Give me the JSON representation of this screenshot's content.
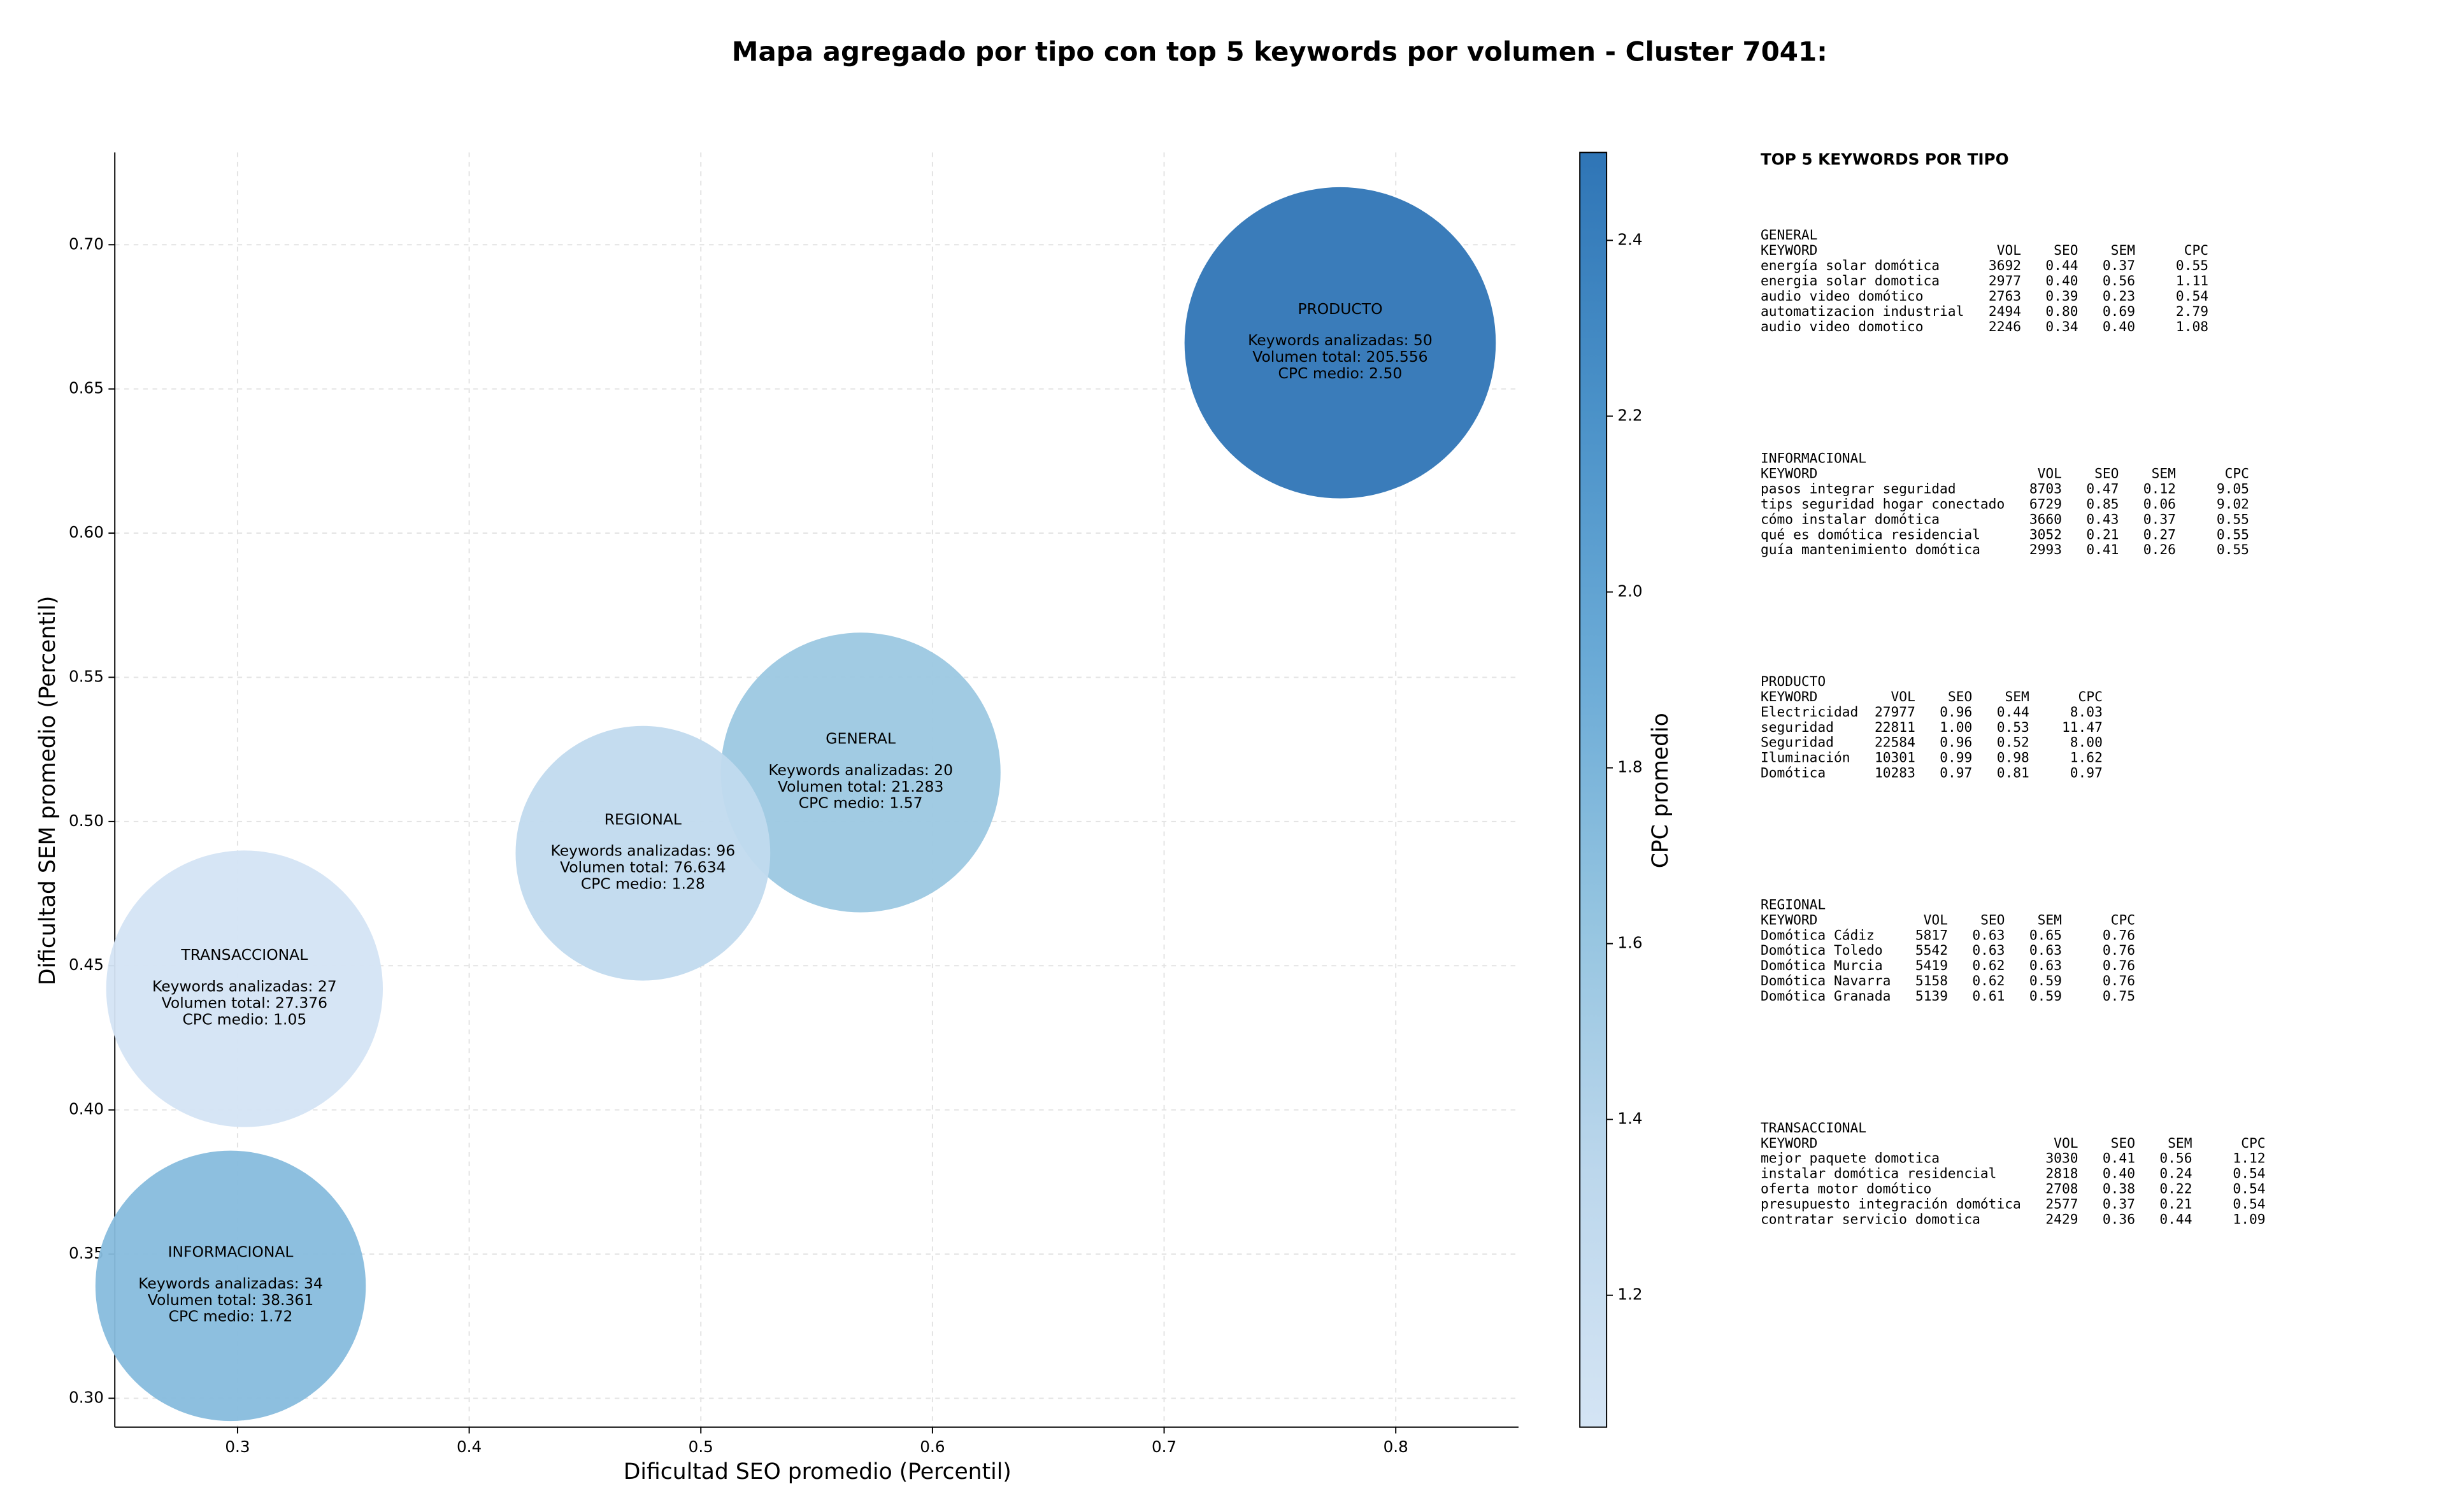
{
  "chart_data": {
    "type": "scatter",
    "title": "Mapa agregado por tipo con top 5 keywords por volumen - Cluster 7041:",
    "x_label": "Dificultad SEO promedio (Percentil)",
    "y_label": "Dificultad SEM promedio (Percentil)",
    "xlim": [
      0.247,
      0.853
    ],
    "ylim": [
      0.29,
      0.732
    ],
    "xticks": [
      0.3,
      0.4,
      0.5,
      0.6,
      0.7,
      0.8
    ],
    "yticks": [
      {
        "value": 0.3,
        "label": "0.30"
      },
      {
        "value": 0.35,
        "label": "0.35"
      },
      {
        "value": 0.4,
        "label": "0.40"
      },
      {
        "value": 0.45,
        "label": "0.45"
      },
      {
        "value": 0.5,
        "label": "0.50"
      },
      {
        "value": 0.55,
        "label": "0.55"
      },
      {
        "value": 0.6,
        "label": "0.60"
      },
      {
        "value": 0.65,
        "label": "0.65"
      },
      {
        "value": 0.7,
        "label": "0.70"
      }
    ],
    "grid": true,
    "colorbar_label": "CPC promedio",
    "clim": [
      1.05,
      2.5
    ],
    "cticks": [
      1.2,
      1.4,
      1.6,
      1.8,
      {
        "value": 2,
        "label": "2.0"
      },
      2.2,
      2.4
    ],
    "colormap": [
      "#d4e4f4",
      "#bcd7ec",
      "#94c4e0",
      "#6aaad6",
      "#4a91c8",
      "#2f75b6"
    ],
    "points": [
      {
        "name": "GENERAL",
        "x": 0.569,
        "y": 0.517,
        "cpc": 1.57,
        "details": [
          "Keywords analizadas: 20",
          "Volumen total: 21.283",
          "CPC medio: 1.57"
        ]
      },
      {
        "name": "INFORMACIONAL",
        "x": 0.297,
        "y": 0.339,
        "cpc": 1.72,
        "details": [
          "Keywords analizadas: 34",
          "Volumen total: 38.361",
          "CPC medio: 1.72"
        ]
      },
      {
        "name": "PRODUCTO",
        "x": 0.776,
        "y": 0.666,
        "cpc": 2.5,
        "details": [
          "Keywords analizadas: 50",
          "Volumen total: 205.556",
          "CPC medio: 2.50"
        ]
      },
      {
        "name": "REGIONAL",
        "x": 0.475,
        "y": 0.489,
        "cpc": 1.28,
        "details": [
          "Keywords analizadas: 96",
          "Volumen total: 76.634",
          "CPC medio: 1.28"
        ]
      },
      {
        "name": "TRANSACCIONAL",
        "x": 0.303,
        "y": 0.442,
        "cpc": 1.05,
        "details": [
          "Keywords analizadas: 27",
          "Volumen total: 27.376",
          "CPC medio: 1.05"
        ]
      }
    ]
  },
  "keyword_table": {
    "title": "TOP 5 KEYWORDS POR TIPO",
    "header": [
      "KEYWORD",
      "VOL",
      "SEO",
      "SEM",
      "CPC"
    ],
    "groups": [
      {
        "name": "GENERAL",
        "rows": [
          [
            "energía solar domótica",
            "3692",
            "0.44",
            "0.37",
            "0.55"
          ],
          [
            "energia solar domotica",
            "2977",
            "0.40",
            "0.56",
            "1.11"
          ],
          [
            "audio video domótico",
            "2763",
            "0.39",
            "0.23",
            "0.54"
          ],
          [
            "automatizacion industrial",
            "2494",
            "0.80",
            "0.69",
            "2.79"
          ],
          [
            "audio video domotico",
            "2246",
            "0.34",
            "0.40",
            "1.08"
          ]
        ]
      },
      {
        "name": "INFORMACIONAL",
        "rows": [
          [
            "pasos integrar seguridad",
            "8703",
            "0.47",
            "0.12",
            "9.05"
          ],
          [
            "tips seguridad hogar conectado",
            "6729",
            "0.85",
            "0.06",
            "9.02"
          ],
          [
            "cómo instalar domótica",
            "3660",
            "0.43",
            "0.37",
            "0.55"
          ],
          [
            "qué es domótica residencial",
            "3052",
            "0.21",
            "0.27",
            "0.55"
          ],
          [
            "guía mantenimiento domótica",
            "2993",
            "0.41",
            "0.26",
            "0.55"
          ]
        ]
      },
      {
        "name": "PRODUCTO",
        "rows": [
          [
            "Electricidad",
            "27977",
            "0.96",
            "0.44",
            "8.03"
          ],
          [
            "seguridad",
            "22811",
            "1.00",
            "0.53",
            "11.47"
          ],
          [
            "Seguridad",
            "22584",
            "0.96",
            "0.52",
            "8.00"
          ],
          [
            "Iluminación",
            "10301",
            "0.99",
            "0.98",
            "1.62"
          ],
          [
            "Domótica",
            "10283",
            "0.97",
            "0.81",
            "0.97"
          ]
        ]
      },
      {
        "name": "REGIONAL",
        "rows": [
          [
            "Domótica Cádiz",
            "5817",
            "0.63",
            "0.65",
            "0.76"
          ],
          [
            "Domótica Toledo",
            "5542",
            "0.63",
            "0.63",
            "0.76"
          ],
          [
            "Domótica Murcia",
            "5419",
            "0.62",
            "0.63",
            "0.76"
          ],
          [
            "Domótica Navarra",
            "5158",
            "0.62",
            "0.59",
            "0.76"
          ],
          [
            "Domótica Granada",
            "5139",
            "0.61",
            "0.59",
            "0.75"
          ]
        ]
      },
      {
        "name": "TRANSACCIONAL",
        "rows": [
          [
            "mejor paquete domotica",
            "3030",
            "0.41",
            "0.56",
            "1.12"
          ],
          [
            "instalar domótica residencial",
            "2818",
            "0.40",
            "0.24",
            "0.54"
          ],
          [
            "oferta motor domótico",
            "2708",
            "0.38",
            "0.22",
            "0.54"
          ],
          [
            "presupuesto integración domótica",
            "2577",
            "0.37",
            "0.21",
            "0.54"
          ],
          [
            "contratar servicio domotica",
            "2429",
            "0.36",
            "0.44",
            "1.09"
          ]
        ]
      }
    ]
  }
}
